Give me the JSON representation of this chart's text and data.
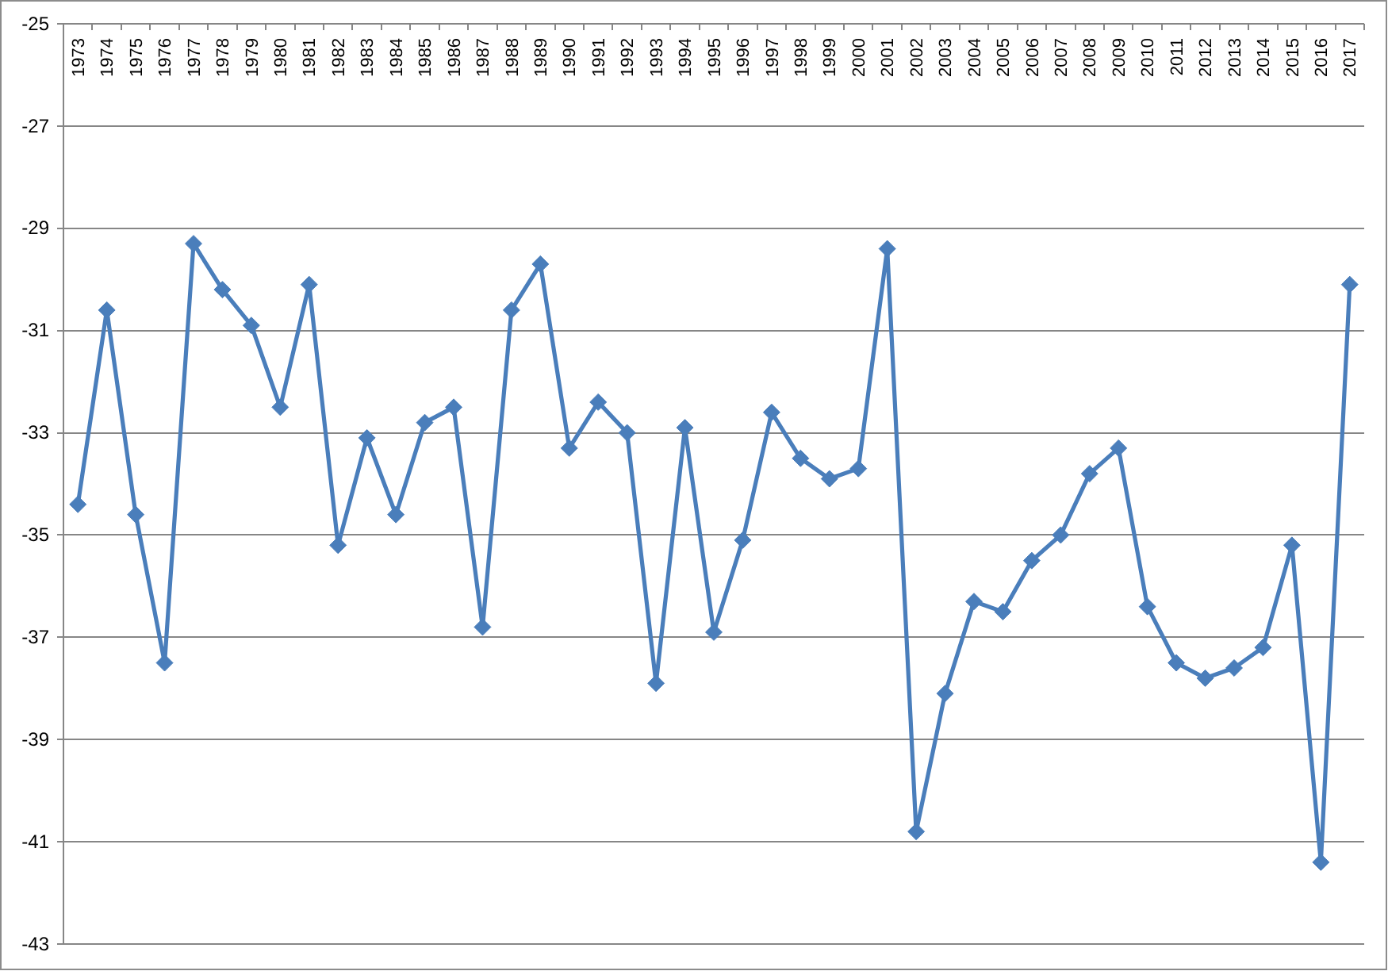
{
  "chart_data": {
    "type": "line",
    "categories": [
      "1973",
      "1974",
      "1975",
      "1976",
      "1977",
      "1978",
      "1979",
      "1980",
      "1981",
      "1982",
      "1983",
      "1984",
      "1985",
      "1986",
      "1987",
      "1988",
      "1989",
      "1990",
      "1991",
      "1992",
      "1993",
      "1994",
      "1995",
      "1996",
      "1997",
      "1998",
      "1999",
      "2000",
      "2001",
      "2002",
      "2003",
      "2004",
      "2005",
      "2006",
      "2007",
      "2008",
      "2009",
      "2010",
      "2011",
      "2012",
      "2013",
      "2014",
      "2015",
      "2016",
      "2017"
    ],
    "series": [
      {
        "color": "#4a7ebb",
        "values": [
          -34.4,
          -30.6,
          -34.6,
          -37.5,
          -29.3,
          -30.2,
          -30.9,
          -32.5,
          -30.1,
          -35.2,
          -33.1,
          -34.6,
          -32.8,
          -32.5,
          -36.8,
          -30.6,
          -29.7,
          -33.3,
          -32.4,
          -33.0,
          -37.9,
          -32.9,
          -36.9,
          -35.1,
          -32.6,
          -33.5,
          -33.9,
          -33.7,
          -29.4,
          -40.8,
          -38.1,
          -36.3,
          -36.5,
          -35.5,
          -35.0,
          -33.8,
          -33.3,
          -36.4,
          -37.5,
          -37.8,
          -37.6,
          -37.2,
          -35.2,
          -41.4,
          -30.1
        ]
      }
    ],
    "ylim": [
      -43,
      -25
    ],
    "yticks": [
      -25,
      -27,
      -29,
      -31,
      -33,
      -35,
      -37,
      -39,
      -41,
      -43
    ],
    "grid": "y",
    "marker": "diamond",
    "line_style": "solid"
  }
}
